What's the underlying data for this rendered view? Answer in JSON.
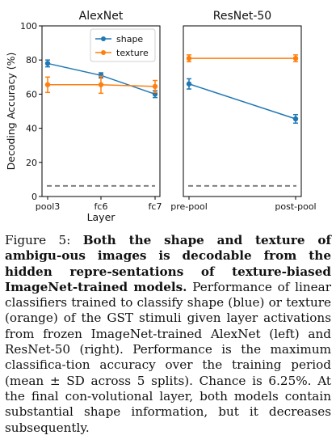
{
  "chart_data": [
    {
      "type": "line",
      "title": "AlexNet",
      "xlabel": "Layer",
      "ylabel": "Decoding Accuracy (%)",
      "categories": [
        "pool3",
        "fc6",
        "fc7"
      ],
      "ylim": [
        0,
        100
      ],
      "yticks": [
        0,
        20,
        40,
        60,
        80,
        100
      ],
      "legend": "top-right",
      "chance": 6.25,
      "series": [
        {
          "name": "shape",
          "color": "#1f77b4",
          "values": [
            78,
            71,
            60
          ],
          "errors": [
            2,
            1.5,
            2
          ]
        },
        {
          "name": "texture",
          "color": "#ff7f0e",
          "values": [
            65.5,
            65.5,
            64.5
          ],
          "errors": [
            4.5,
            5,
            3.5
          ]
        }
      ]
    },
    {
      "type": "line",
      "title": "ResNet-50",
      "categories": [
        "pre-pool",
        "post-pool"
      ],
      "ylim": [
        0,
        100
      ],
      "chance": 6.25,
      "series": [
        {
          "name": "shape",
          "color": "#1f77b4",
          "values": [
            66,
            45.5
          ],
          "errors": [
            3,
            2.5
          ]
        },
        {
          "name": "texture",
          "color": "#ff7f0e",
          "values": [
            81,
            81
          ],
          "errors": [
            2,
            2
          ]
        }
      ]
    }
  ],
  "caption": {
    "label": "Figure 5: ",
    "bold": "Both the shape and texture of ambigu-ous images is decodable from the hidden repre-sentations of texture-biased ImageNet-trained models.",
    "body": " Performance of linear classifiers trained to classify shape (blue) or texture (orange) of the GST stimuli given layer activations from frozen ImageNet-trained AlexNet (left) and ResNet-50 (right).  Performance is the maximum classifica-tion accuracy over the training period (mean ± SD across 5 splits). Chance is 6.25%. At the final con-volutional layer, both models contain substantial shape information, but it decreases subsequently."
  }
}
